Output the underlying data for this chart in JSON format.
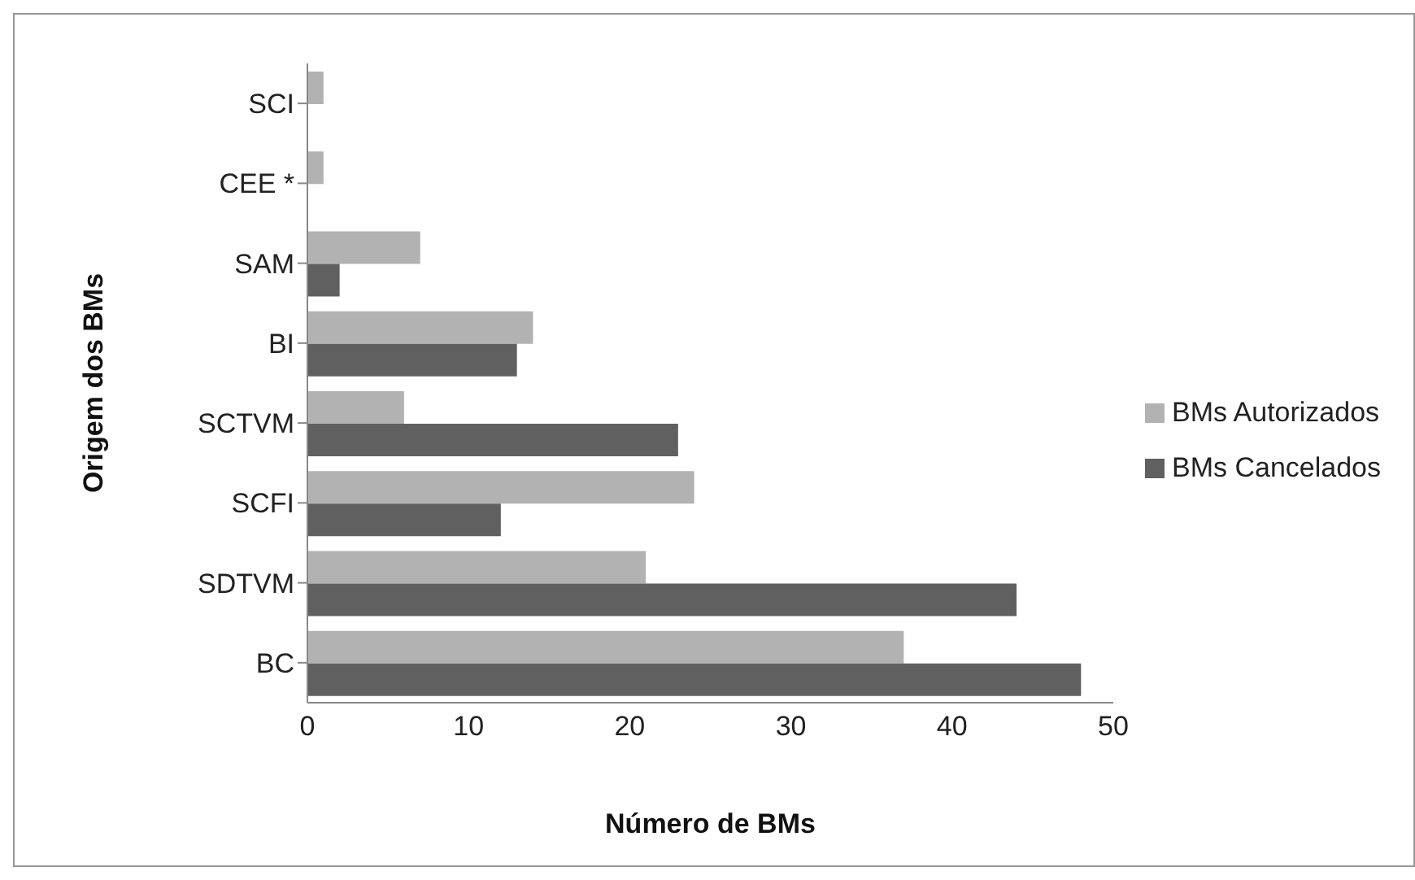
{
  "chart_data": {
    "type": "bar",
    "orientation": "horizontal",
    "xlabel": "Número de BMs",
    "ylabel": "Origem dos BMs",
    "categories": [
      "SCI",
      "CEE *",
      "SAM",
      "BI",
      "SCTVM",
      "SCFI",
      "SDTVM",
      "BC"
    ],
    "series": [
      {
        "name": "BMs Autorizados",
        "color": "#b2b2b2",
        "values": [
          1,
          1,
          7,
          14,
          6,
          24,
          21,
          37
        ]
      },
      {
        "name": "BMs Cancelados",
        "color": "#606060",
        "values": [
          0,
          0,
          2,
          13,
          23,
          12,
          44,
          48
        ]
      }
    ],
    "xlim": [
      0,
      50
    ],
    "xticks": [
      0,
      10,
      20,
      30,
      40,
      50
    ],
    "grid": false,
    "legend": "right"
  }
}
